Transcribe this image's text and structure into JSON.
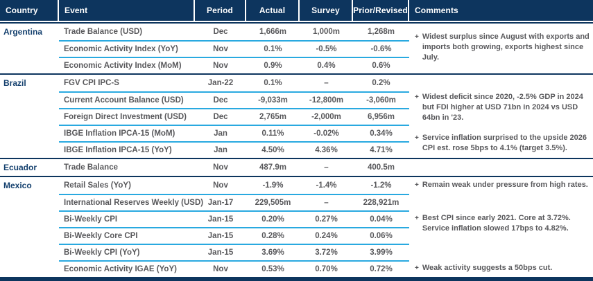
{
  "colors": {
    "header_bg": "#0d355e",
    "header_text": "#ffffff",
    "country_text": "#14406e",
    "data_text": "#58585b",
    "row_divider_cyan": "#29a9e0",
    "group_divider_navy": "#0d355e"
  },
  "bullet_glyph": "+",
  "table": {
    "headers": [
      "Country",
      "Event",
      "Period",
      "Actual",
      "Survey",
      "Prior/Revised",
      "Comments"
    ],
    "groups": [
      {
        "country": "Argentina",
        "rows": [
          {
            "event": "Trade Balance (USD)",
            "period": "Dec",
            "actual": "1,666m",
            "survey": "1,000m",
            "prior": "1,268m"
          },
          {
            "event": "Economic Activity Index (YoY)",
            "period": "Nov",
            "actual": "0.1%",
            "survey": "-0.5%",
            "prior": "-0.6%"
          },
          {
            "event": "Economic Activity Index (MoM)",
            "period": "Nov",
            "actual": "0.9%",
            "survey": "0.4%",
            "prior": "0.6%"
          }
        ],
        "comments": [
          "Widest surplus since August with exports and imports both growing, exports highest since July."
        ]
      },
      {
        "country": "Brazil",
        "rows": [
          {
            "event": "FGV CPI IPC-S",
            "period": "Jan-22",
            "actual": "0.1%",
            "survey": "–",
            "prior": "0.2%"
          },
          {
            "event": "Current Account Balance (USD)",
            "period": "Dec",
            "actual": "-9,033m",
            "survey": "-12,800m",
            "prior": "-3,060m"
          },
          {
            "event": "Foreign Direct Investment (USD)",
            "period": "Dec",
            "actual": "2,765m",
            "survey": "-2,000m",
            "prior": "6,956m"
          },
          {
            "event": "IBGE Inflation IPCA-15 (MoM)",
            "period": "Jan",
            "actual": "0.11%",
            "survey": "-0.02%",
            "prior": "0.34%"
          },
          {
            "event": "IBGE Inflation IPCA-15 (YoY)",
            "period": "Jan",
            "actual": "4.50%",
            "survey": "4.36%",
            "prior": "4.71%"
          }
        ],
        "comments": [
          "Widest deficit since 2020, -2.5% GDP in 2024 but FDI higher at USD 71bn in 2024 vs USD 64bn in '23.",
          "Service inflation surprised to the upside 2026 CPI est. rose 5bps to 4.1% (target 3.5%)."
        ]
      },
      {
        "country": "Ecuador",
        "rows": [
          {
            "event": "Trade Balance",
            "period": "Nov",
            "actual": "487.9m",
            "survey": "–",
            "prior": "400.5m"
          }
        ],
        "comments": []
      },
      {
        "country": "Mexico",
        "rows": [
          {
            "event": "Retail Sales (YoY)",
            "period": "Nov",
            "actual": "-1.9%",
            "survey": "-1.4%",
            "prior": "-1.2%"
          },
          {
            "event": "International Reserves Weekly (USD)",
            "period": "Jan-17",
            "actual": "229,505m",
            "survey": "–",
            "prior": "228,921m"
          },
          {
            "event": "Bi-Weekly CPI",
            "period": "Jan-15",
            "actual": "0.20%",
            "survey": "0.27%",
            "prior": "0.04%"
          },
          {
            "event": "Bi-Weekly Core CPI",
            "period": "Jan-15",
            "actual": "0.28%",
            "survey": "0.24%",
            "prior": "0.06%"
          },
          {
            "event": "Bi-Weekly CPI (YoY)",
            "period": "Jan-15",
            "actual": "3.69%",
            "survey": "3.72%",
            "prior": "3.99%"
          },
          {
            "event": "Economic Activity IGAE (YoY)",
            "period": "Nov",
            "actual": "0.53%",
            "survey": "0.70%",
            "prior": "0.72%"
          }
        ],
        "comments": [
          "Remain weak under pressure from high rates.",
          "Best CPI since early 2021. Core at 3.72%. Service inflation slowed 17bps to 4.82%.",
          "Weak activity suggests a 50bps cut."
        ]
      }
    ]
  }
}
